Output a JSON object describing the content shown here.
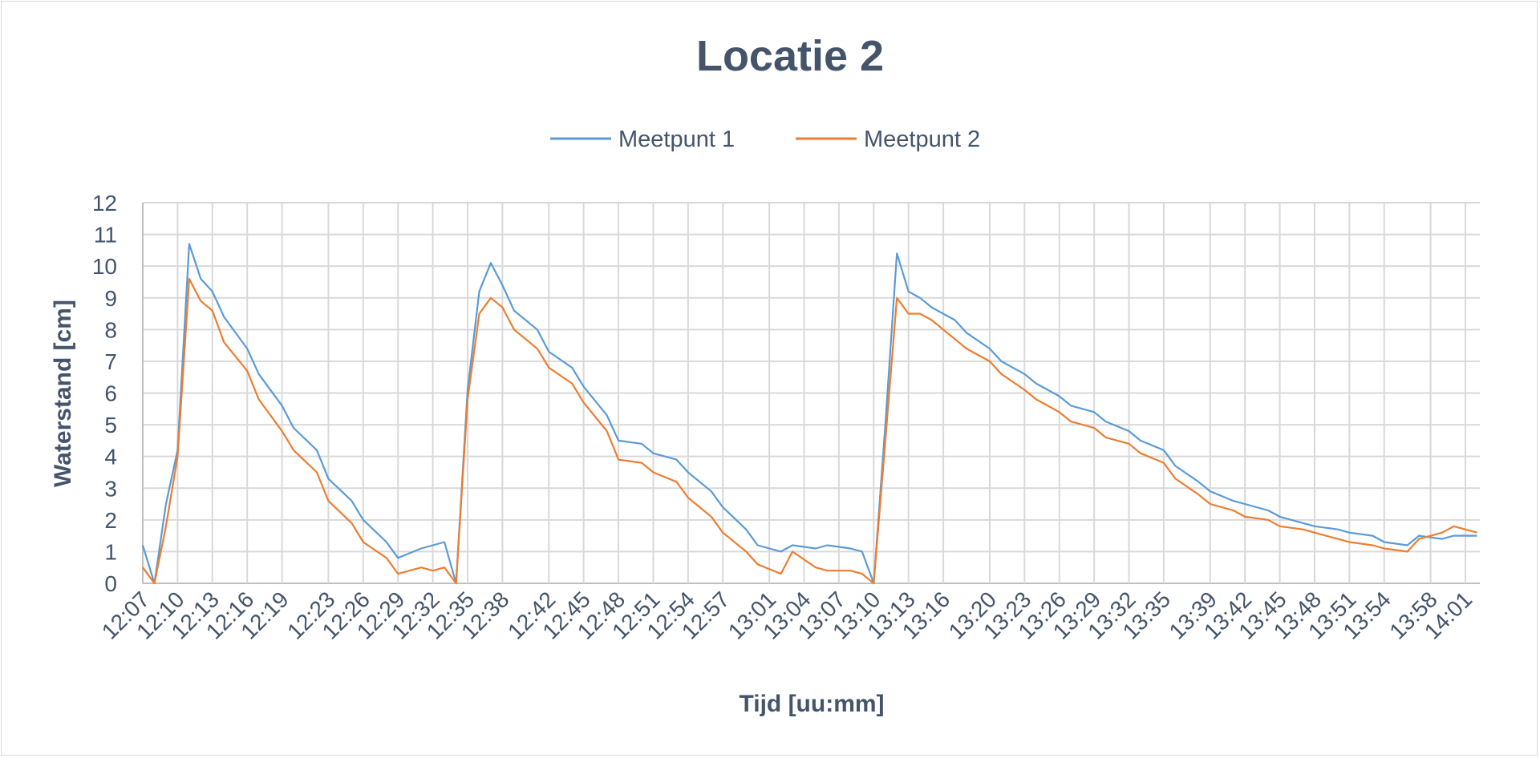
{
  "chart_data": {
    "type": "line",
    "title": "Locatie 2",
    "xlabel": "Tijd [uu:mm]",
    "ylabel": "Waterstand [cm]",
    "ylim": [
      0,
      12
    ],
    "yticks": [
      "0",
      "1",
      "2",
      "3",
      "4",
      "5",
      "6",
      "7",
      "8",
      "9",
      "10",
      "11",
      "12"
    ],
    "grid": true,
    "legend_position": "top",
    "x_tick_labels": [
      "12:07",
      "12:10",
      "12:13",
      "12:16",
      "12:19",
      "12:23",
      "12:26",
      "12:29",
      "12:32",
      "12:35",
      "12:38",
      "12:42",
      "12:45",
      "12:48",
      "12:51",
      "12:54",
      "12:57",
      "13:01",
      "13:04",
      "13:07",
      "13:10",
      "13:13",
      "13:16",
      "13:20",
      "13:23",
      "13:26",
      "13:29",
      "13:32",
      "13:35",
      "13:39",
      "13:42",
      "13:45",
      "13:48",
      "13:51",
      "13:54",
      "13:58",
      "14:01"
    ],
    "x": [
      "12:07",
      "12:08",
      "12:09",
      "12:10",
      "12:11",
      "12:12",
      "12:13",
      "12:14",
      "12:16",
      "12:17",
      "12:19",
      "12:20",
      "12:22",
      "12:23",
      "12:25",
      "12:26",
      "12:28",
      "12:29",
      "12:31",
      "12:32",
      "12:33",
      "12:34",
      "12:35",
      "12:36",
      "12:37",
      "12:38",
      "12:39",
      "12:41",
      "12:42",
      "12:44",
      "12:45",
      "12:47",
      "12:48",
      "12:50",
      "12:51",
      "12:53",
      "12:54",
      "12:56",
      "12:57",
      "12:59",
      "13:00",
      "13:02",
      "13:03",
      "13:05",
      "13:06",
      "13:08",
      "13:09",
      "13:10",
      "13:11",
      "13:12",
      "13:13",
      "13:14",
      "13:15",
      "13:17",
      "13:18",
      "13:20",
      "13:21",
      "13:23",
      "13:24",
      "13:26",
      "13:27",
      "13:29",
      "13:30",
      "13:32",
      "13:33",
      "13:35",
      "13:36",
      "13:38",
      "13:39",
      "13:41",
      "13:42",
      "13:44",
      "13:45",
      "13:47",
      "13:48",
      "13:50",
      "13:51",
      "13:53",
      "13:54",
      "13:56",
      "13:57",
      "13:59",
      "14:00",
      "14:02"
    ],
    "series": [
      {
        "name": "Meetpunt 1",
        "color": "#5b9bd5",
        "values": [
          1.2,
          0.0,
          2.5,
          4.2,
          10.7,
          9.6,
          9.2,
          8.4,
          7.4,
          6.6,
          5.6,
          4.9,
          4.2,
          3.3,
          2.6,
          2.0,
          1.3,
          0.8,
          1.1,
          1.2,
          1.3,
          0.0,
          6.1,
          9.2,
          10.1,
          9.4,
          8.6,
          8.0,
          7.3,
          6.8,
          6.2,
          5.3,
          4.5,
          4.4,
          4.1,
          3.9,
          3.5,
          2.9,
          2.4,
          1.7,
          1.2,
          1.0,
          1.2,
          1.1,
          1.2,
          1.1,
          1.0,
          0.0,
          5.0,
          10.4,
          9.2,
          9.0,
          8.7,
          8.3,
          7.9,
          7.4,
          7.0,
          6.6,
          6.3,
          5.9,
          5.6,
          5.4,
          5.1,
          4.8,
          4.5,
          4.2,
          3.7,
          3.2,
          2.9,
          2.6,
          2.5,
          2.3,
          2.1,
          1.9,
          1.8,
          1.7,
          1.6,
          1.5,
          1.3,
          1.2,
          1.5,
          1.4,
          1.5,
          1.5
        ]
      },
      {
        "name": "Meetpunt 2",
        "color": "#ed7d31",
        "values": [
          0.5,
          0.0,
          1.8,
          4.0,
          9.6,
          8.9,
          8.6,
          7.6,
          6.7,
          5.8,
          4.8,
          4.2,
          3.5,
          2.6,
          1.9,
          1.3,
          0.8,
          0.3,
          0.5,
          0.4,
          0.5,
          0.0,
          5.8,
          8.5,
          9.0,
          8.7,
          8.0,
          7.4,
          6.8,
          6.3,
          5.7,
          4.8,
          3.9,
          3.8,
          3.5,
          3.2,
          2.7,
          2.1,
          1.6,
          1.0,
          0.6,
          0.3,
          1.0,
          0.5,
          0.4,
          0.4,
          0.3,
          0.0,
          4.5,
          9.0,
          8.5,
          8.5,
          8.3,
          7.7,
          7.4,
          7.0,
          6.6,
          6.1,
          5.8,
          5.4,
          5.1,
          4.9,
          4.6,
          4.4,
          4.1,
          3.8,
          3.3,
          2.8,
          2.5,
          2.3,
          2.1,
          2.0,
          1.8,
          1.7,
          1.6,
          1.4,
          1.3,
          1.2,
          1.1,
          1.0,
          1.4,
          1.6,
          1.8,
          1.6
        ]
      }
    ]
  }
}
